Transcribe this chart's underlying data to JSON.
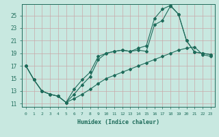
{
  "xlabel": "Humidex (Indice chaleur)",
  "line_color": "#1e6b5a",
  "bg_color": "#c8e8e0",
  "grid_color": "#c8a8a8",
  "xlim": [
    -0.5,
    23.5
  ],
  "ylim": [
    10.5,
    26.8
  ],
  "yticks": [
    11,
    13,
    15,
    17,
    19,
    21,
    23,
    25
  ],
  "xticks": [
    0,
    1,
    2,
    3,
    4,
    5,
    6,
    7,
    8,
    9,
    10,
    11,
    12,
    13,
    14,
    15,
    16,
    17,
    18,
    19,
    20,
    21,
    22,
    23
  ],
  "line1": {
    "x": [
      0,
      1,
      2,
      3,
      4,
      5,
      6,
      7,
      8,
      9,
      10,
      11,
      12,
      13,
      14,
      15,
      16,
      17,
      18,
      19,
      20,
      21,
      22,
      23
    ],
    "y": [
      17.0,
      14.8,
      13.0,
      12.5,
      12.2,
      11.2,
      13.3,
      14.8,
      16.0,
      18.5,
      19.0,
      19.3,
      19.5,
      19.3,
      19.5,
      19.3,
      23.5,
      24.2,
      26.5,
      25.2,
      21.0,
      19.2,
      19.0,
      18.8
    ]
  },
  "line2": {
    "x": [
      0,
      1,
      2,
      3,
      4,
      5,
      6,
      7,
      8,
      9,
      10,
      11,
      12,
      13,
      14,
      15,
      16,
      17,
      18,
      19,
      20,
      21,
      22,
      23
    ],
    "y": [
      17.0,
      14.8,
      13.0,
      12.5,
      12.2,
      11.2,
      12.5,
      14.0,
      15.3,
      18.0,
      19.0,
      19.3,
      19.5,
      19.3,
      19.8,
      20.2,
      24.5,
      26.0,
      26.6,
      25.2,
      21.0,
      19.2,
      19.0,
      18.8
    ]
  },
  "line3": {
    "x": [
      0,
      1,
      2,
      3,
      4,
      5,
      6,
      7,
      8,
      9,
      10,
      11,
      12,
      13,
      14,
      15,
      16,
      17,
      18,
      19,
      20,
      21,
      22,
      23
    ],
    "y": [
      17.0,
      14.8,
      13.0,
      12.5,
      12.2,
      11.2,
      11.8,
      12.5,
      13.3,
      14.2,
      15.0,
      15.5,
      16.0,
      16.5,
      17.0,
      17.5,
      18.0,
      18.5,
      19.0,
      19.5,
      19.8,
      20.0,
      18.8,
      18.5
    ]
  }
}
